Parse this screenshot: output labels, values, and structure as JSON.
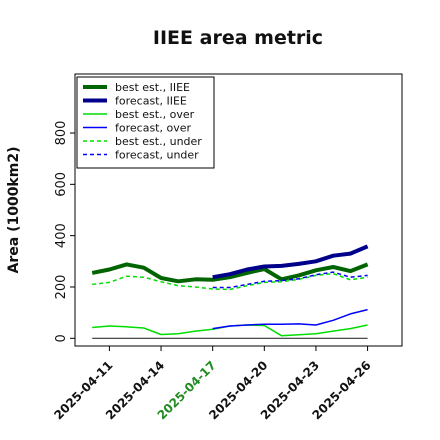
{
  "chart_data": {
    "type": "line",
    "title": "IIEE area metric",
    "xlabel": "",
    "ylabel": "Area (1000km2)",
    "ylim": [
      -30,
      1030
    ],
    "yticks": [
      0,
      200,
      400,
      600,
      800
    ],
    "xlim": [
      "2025-04-09",
      "2025-04-28"
    ],
    "x": [
      "2025-04-10",
      "2025-04-11",
      "2025-04-12",
      "2025-04-13",
      "2025-04-14",
      "2025-04-15",
      "2025-04-16",
      "2025-04-17",
      "2025-04-18",
      "2025-04-19",
      "2025-04-20",
      "2025-04-21",
      "2025-04-22",
      "2025-04-23",
      "2025-04-24",
      "2025-04-25",
      "2025-04-26"
    ],
    "xticks": [
      "2025-04-11",
      "2025-04-14",
      "2025-04-17",
      "2025-04-20",
      "2025-04-23",
      "2025-04-26"
    ],
    "xtick_colors": [
      "#111111",
      "#111111",
      "#228B22",
      "#111111",
      "#111111",
      "#111111"
    ],
    "grid": false,
    "legend_position": "top-left",
    "baseline": {
      "value": 0,
      "color": "#333333"
    },
    "series": [
      {
        "name": "best est., IIEE",
        "color": "#006400",
        "width": 4,
        "dash": "",
        "x": [
          "2025-04-10",
          "2025-04-11",
          "2025-04-12",
          "2025-04-13",
          "2025-04-14",
          "2025-04-15",
          "2025-04-16",
          "2025-04-17",
          "2025-04-18",
          "2025-04-19",
          "2025-04-20",
          "2025-04-21",
          "2025-04-22",
          "2025-04-23",
          "2025-04-24",
          "2025-04-25",
          "2025-04-26"
        ],
        "values": [
          255,
          268,
          288,
          275,
          235,
          222,
          230,
          228,
          238,
          255,
          270,
          230,
          245,
          265,
          278,
          262,
          288
        ]
      },
      {
        "name": "forecast, IIEE",
        "color": "#00008B",
        "width": 4,
        "dash": "",
        "x": [
          "2025-04-17",
          "2025-04-18",
          "2025-04-19",
          "2025-04-20",
          "2025-04-21",
          "2025-04-22",
          "2025-04-23",
          "2025-04-24",
          "2025-04-25",
          "2025-04-26"
        ],
        "values": [
          238,
          250,
          268,
          280,
          282,
          290,
          300,
          322,
          330,
          358
        ]
      },
      {
        "name": "best est., over",
        "color": "#00dd00",
        "width": 1.5,
        "dash": "",
        "x": [
          "2025-04-10",
          "2025-04-11",
          "2025-04-12",
          "2025-04-13",
          "2025-04-14",
          "2025-04-15",
          "2025-04-16",
          "2025-04-17",
          "2025-04-18",
          "2025-04-19",
          "2025-04-20",
          "2025-04-21",
          "2025-04-22",
          "2025-04-23",
          "2025-04-24",
          "2025-04-25",
          "2025-04-26"
        ],
        "values": [
          42,
          48,
          45,
          40,
          15,
          18,
          28,
          35,
          48,
          52,
          50,
          10,
          14,
          18,
          28,
          38,
          52
        ]
      },
      {
        "name": "forecast, over",
        "color": "#0000ff",
        "width": 1.5,
        "dash": "",
        "x": [
          "2025-04-17",
          "2025-04-18",
          "2025-04-19",
          "2025-04-20",
          "2025-04-21",
          "2025-04-22",
          "2025-04-23",
          "2025-04-24",
          "2025-04-25",
          "2025-04-26"
        ],
        "values": [
          38,
          48,
          52,
          55,
          55,
          56,
          52,
          70,
          95,
          112
        ]
      },
      {
        "name": "best est., under",
        "color": "#00dd00",
        "width": 1.5,
        "dash": "4,3",
        "x": [
          "2025-04-10",
          "2025-04-11",
          "2025-04-12",
          "2025-04-13",
          "2025-04-14",
          "2025-04-15",
          "2025-04-16",
          "2025-04-17",
          "2025-04-18",
          "2025-04-19",
          "2025-04-20",
          "2025-04-21",
          "2025-04-22",
          "2025-04-23",
          "2025-04-24",
          "2025-04-25",
          "2025-04-26"
        ],
        "values": [
          210,
          218,
          242,
          238,
          220,
          205,
          200,
          192,
          190,
          205,
          218,
          220,
          230,
          245,
          252,
          228,
          238
        ]
      },
      {
        "name": "forecast, under",
        "color": "#0000ff",
        "width": 1.5,
        "dash": "4,3",
        "x": [
          "2025-04-17",
          "2025-04-18",
          "2025-04-19",
          "2025-04-20",
          "2025-04-21",
          "2025-04-22",
          "2025-04-23",
          "2025-04-24",
          "2025-04-25",
          "2025-04-26"
        ],
        "values": [
          198,
          198,
          210,
          222,
          225,
          232,
          248,
          258,
          238,
          245
        ]
      }
    ]
  }
}
